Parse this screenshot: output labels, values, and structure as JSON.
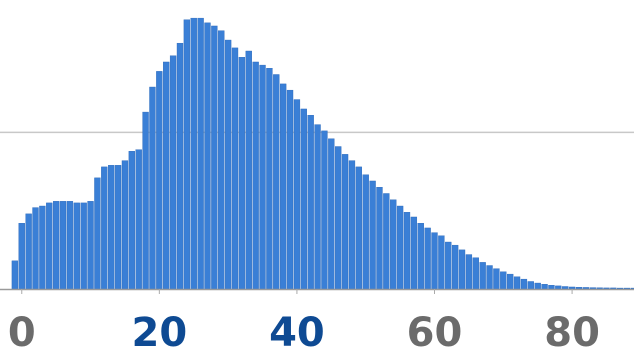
{
  "chart_data": {
    "type": "bar",
    "x_start": -1,
    "x_step": 1,
    "values": [
      1.8,
      4.2,
      4.8,
      5.2,
      5.3,
      5.5,
      5.6,
      5.6,
      5.6,
      5.5,
      5.5,
      5.6,
      7.1,
      7.8,
      7.9,
      7.9,
      8.2,
      8.8,
      8.9,
      11.3,
      12.9,
      13.9,
      14.5,
      14.9,
      15.7,
      17.2,
      17.3,
      17.3,
      17.0,
      16.8,
      16.5,
      15.9,
      15.4,
      14.8,
      15.2,
      14.5,
      14.3,
      14.1,
      13.7,
      13.1,
      12.7,
      12.1,
      11.5,
      11.1,
      10.5,
      10.1,
      9.6,
      9.1,
      8.6,
      8.2,
      7.8,
      7.3,
      6.9,
      6.5,
      6.1,
      5.7,
      5.3,
      4.9,
      4.6,
      4.2,
      3.9,
      3.6,
      3.4,
      3.0,
      2.8,
      2.5,
      2.2,
      2.0,
      1.7,
      1.5,
      1.3,
      1.1,
      0.95,
      0.78,
      0.63,
      0.48,
      0.38,
      0.3,
      0.24,
      0.2,
      0.16,
      0.13,
      0.11,
      0.1,
      0.09,
      0.08,
      0.07,
      0.07,
      0.06,
      0.06,
      0.06
    ],
    "xlim": [
      -2,
      89
    ],
    "ylim": [
      0,
      17.5
    ],
    "x_ticks": [
      0,
      20,
      40,
      60,
      80
    ],
    "x_tick_labels": [
      "0",
      "20",
      "40",
      "60",
      "80"
    ],
    "x_tick_colors": [
      "#6b6b6b",
      "#0e4a93",
      "#0e4a93",
      "#6b6b6b",
      "#6b6b6b"
    ],
    "gridlines_y": [
      10
    ],
    "grid": true,
    "colors": {
      "bar": "#3a7fd6",
      "bar_edge": "#2a67b8",
      "gridline": "#c8c8c8",
      "baseline": "#9a9a9a",
      "axis_tick": "#aaaaaa"
    }
  }
}
